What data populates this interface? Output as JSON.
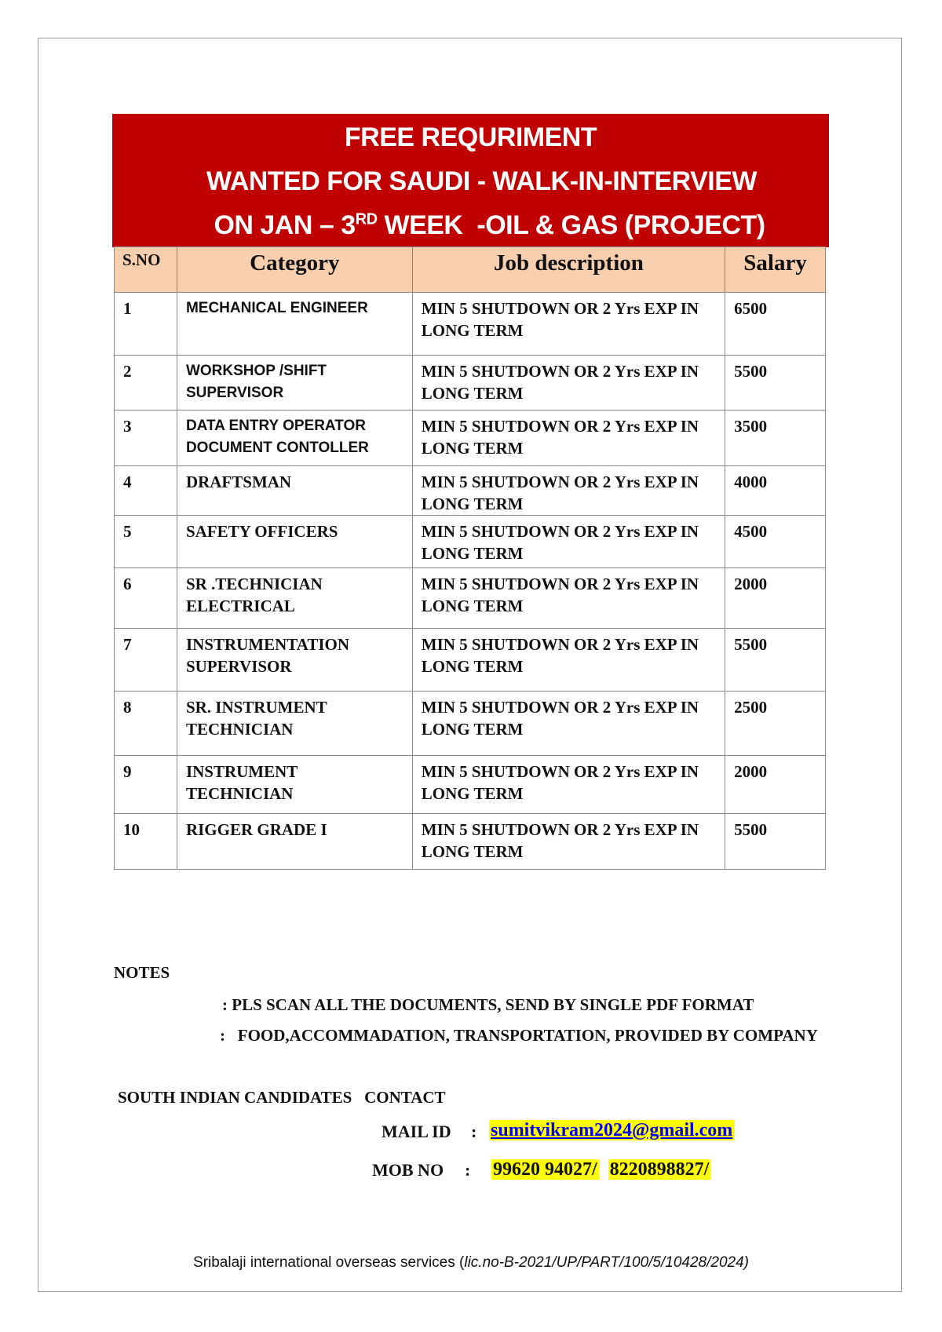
{
  "banner": {
    "line1": "FREE REQURIMENT",
    "line2": "WANTED FOR SAUDI -  WALK-IN-INTERVIEW",
    "line3_pre": "ON JAN – 3",
    "line3_sup": "RD",
    "line3_post": " WEEK  -OIL & GAS (PROJECT)"
  },
  "table": {
    "headers": [
      "S.NO",
      "Category",
      "Job description",
      "Salary"
    ],
    "rows": [
      {
        "sno": "1",
        "category": "MECHANICAL ENGINEER",
        "desc": "MIN 5 SHUTDOWN OR  2 Yrs EXP IN LONG TERM",
        "salary": "6500"
      },
      {
        "sno": "2",
        "category": "WORKSHOP /SHIFT SUPERVISOR",
        "desc": "MIN 5 SHUTDOWN OR  2 Yrs EXP IN LONG TERM",
        "salary": "5500"
      },
      {
        "sno": "3",
        "category": "DATA ENTRY OPERATOR DOCUMENT CONTOLLER",
        "desc": "MIN 5 SHUTDOWN OR  2 Yrs EXP IN LONG TERM",
        "salary": "3500"
      },
      {
        "sno": "4",
        "category": "DRAFTSMAN",
        "desc": "MIN 5 SHUTDOWN OR  2 Yrs EXP IN LONG TERM",
        "salary": "4000"
      },
      {
        "sno": "5",
        "category": "SAFETY OFFICERS",
        "desc": "MIN 5 SHUTDOWN OR  2 Yrs EXP IN LONG TERM",
        "salary": "4500"
      },
      {
        "sno": "6",
        "category": "SR .TECHNICIAN ELECTRICAL",
        "desc": "MIN 5 SHUTDOWN OR  2 Yrs EXP IN LONG TERM",
        "salary": "2000"
      },
      {
        "sno": "7",
        "category": "INSTRUMENTATION SUPERVISOR",
        "desc": "MIN 5 SHUTDOWN OR  2 Yrs EXP IN LONG TERM",
        "salary": "5500"
      },
      {
        "sno": "8",
        "category": "SR. INSTRUMENT TECHNICIAN",
        "desc": "MIN 5 SHUTDOWN OR  2 Yrs EXP IN LONG TERM",
        "salary": "2500"
      },
      {
        "sno": "9",
        "category": "INSTRUMENT TECHNICIAN",
        "desc": "MIN 5 SHUTDOWN OR  2 Yrs EXP IN LONG TERM",
        "salary": "2000"
      },
      {
        "sno": "10",
        "category": "RIGGER GRADE I",
        "desc": "MIN 5 SHUTDOWN OR  2 Yrs EXP IN LONG TERM",
        "salary": "5500"
      }
    ]
  },
  "notes": {
    "title": "NOTES",
    "items": [
      ":  PLS SCAN ALL THE DOCUMENTS, SEND BY SINGLE PDF FORMAT",
      ":   FOOD,ACCOMMADATION, TRANSPORTATION, PROVIDED BY COMPANY"
    ]
  },
  "contact": {
    "title": "SOUTH INDIAN CANDIDATES   CONTACT",
    "mail_label": "MAIL ID",
    "sep": ":",
    "email": "sumitvikram2024@gmail.com",
    "mob_label": "MOB NO",
    "phone1": "99620 94027/",
    "phone2": "8220898827/"
  },
  "footer": {
    "company": "Sribalaji international overseas services (",
    "license": "lic.no-B-2021/UP/PART/100/5/10428/2024)"
  },
  "colors": {
    "banner": "#c00000",
    "header_bg": "#f8cfae",
    "highlight": "#ffff00"
  }
}
